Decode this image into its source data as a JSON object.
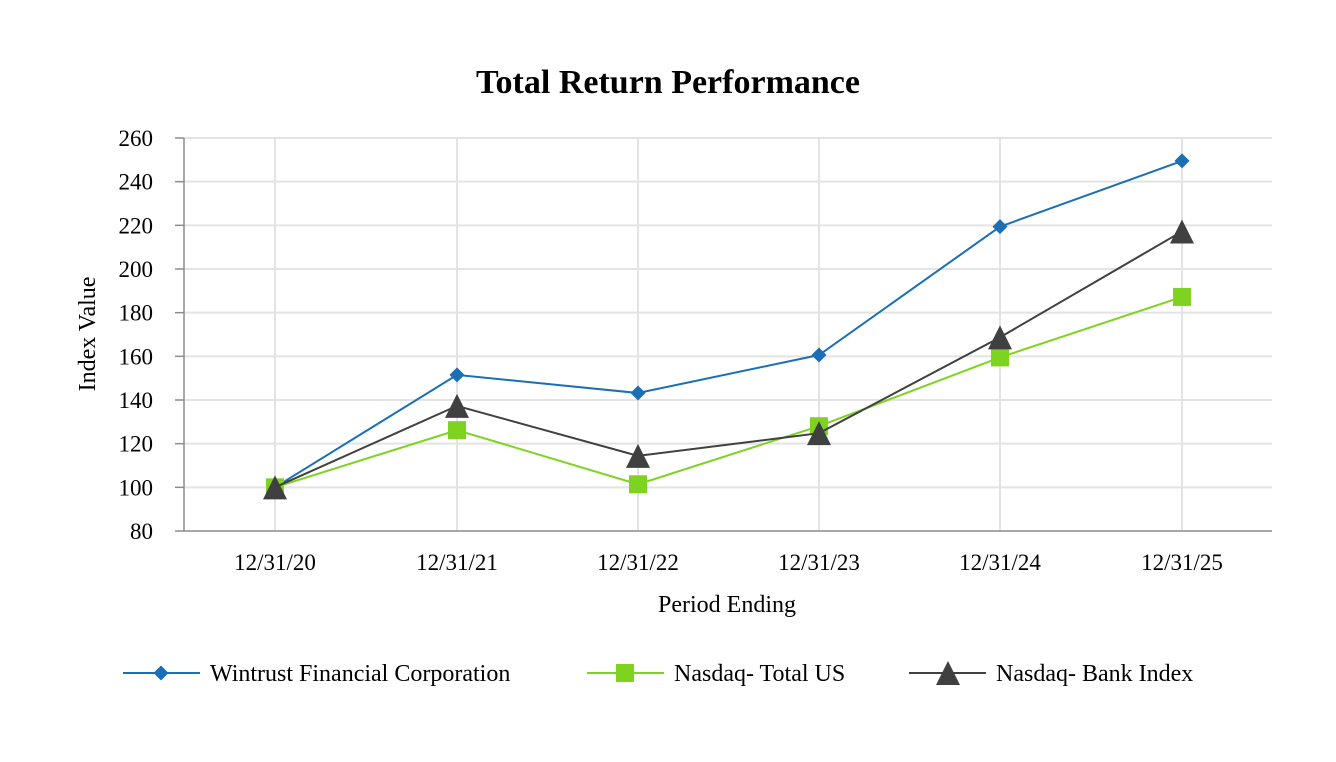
{
  "chart_data": {
    "type": "line",
    "title": "Total Return Performance",
    "xlabel": "Period Ending",
    "ylabel": "Index Value",
    "categories": [
      "12/31/20",
      "12/31/21",
      "12/31/22",
      "12/31/23",
      "12/31/24",
      "12/31/25"
    ],
    "ylim": [
      80,
      260
    ],
    "yticks": [
      80,
      100,
      120,
      140,
      160,
      180,
      200,
      220,
      240,
      260
    ],
    "grid": true,
    "legend_position": "bottom",
    "series": [
      {
        "name": "Wintrust Financial Corporation",
        "values": [
          100,
          151.5,
          143.2,
          160.6,
          219.4,
          249.5
        ],
        "color": "#1a6fb5",
        "marker": "diamond"
      },
      {
        "name": "Nasdaq- Total US",
        "values": [
          100,
          126.2,
          101.4,
          128.0,
          159.5,
          187.2
        ],
        "color": "#7ed321",
        "marker": "square"
      },
      {
        "name": "Nasdaq- Bank Index",
        "values": [
          100,
          137.3,
          114.4,
          124.8,
          168.7,
          217.2
        ],
        "color": "#404040",
        "marker": "triangle"
      }
    ]
  }
}
